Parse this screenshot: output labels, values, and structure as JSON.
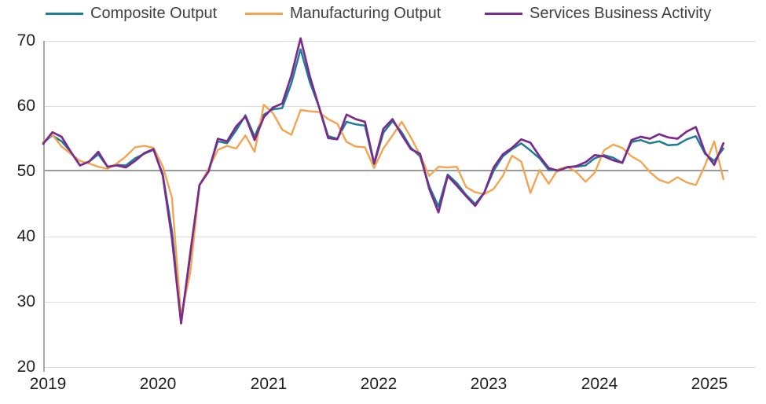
{
  "chart_data": {
    "type": "line",
    "title": "",
    "frequency": "monthly",
    "x_start": "2019-01",
    "x_end": "2025-03",
    "x_tick_labels": [
      "2019",
      "2020",
      "2021",
      "2022",
      "2023",
      "2024",
      "2025"
    ],
    "y_ticks": [
      20,
      30,
      40,
      50,
      60,
      70
    ],
    "ylim": [
      20,
      70
    ],
    "reference_line": 50,
    "grid": true,
    "legend_position": "top",
    "colors": {
      "composite": "#1b7d96",
      "manufacturing": "#f4a44e",
      "services": "#7a2b8e",
      "gridline": "#dcdcdc",
      "reference_line": "#9a9a9a",
      "axis": "#a9a9a9",
      "tick_text": "#1f1f1f"
    },
    "series": [
      {
        "name": "Composite Output",
        "color": "#1b7d96",
        "values": [
          54.4,
          55.5,
          54.6,
          53.0,
          50.9,
          51.5,
          52.6,
          50.7,
          51.0,
          50.9,
          52.0,
          52.7,
          53.3,
          49.6,
          40.9,
          27.0,
          37.0,
          47.9,
          50.3,
          54.6,
          54.3,
          56.3,
          58.6,
          55.3,
          58.7,
          59.5,
          59.7,
          63.5,
          68.7,
          63.7,
          59.9,
          55.4,
          55.0,
          57.6,
          57.2,
          57.0,
          51.1,
          55.9,
          57.7,
          56.0,
          53.6,
          52.3,
          47.7,
          44.6,
          49.5,
          48.2,
          46.4,
          45.0,
          46.8,
          50.1,
          52.3,
          53.4,
          54.3,
          53.2,
          52.0,
          50.2,
          50.2,
          50.7,
          50.7,
          50.9,
          52.0,
          52.5,
          52.1,
          51.3,
          54.5,
          54.8,
          54.3,
          54.6,
          54.0,
          54.1,
          54.9,
          55.4,
          52.7,
          51.6,
          53.5
        ]
      },
      {
        "name": "Manufacturing Output",
        "color": "#f4a44e",
        "values": [
          54.5,
          55.6,
          53.8,
          52.7,
          51.6,
          51.2,
          50.7,
          50.4,
          51.2,
          52.3,
          53.7,
          53.9,
          53.6,
          50.8,
          46.0,
          27.8,
          34.5,
          47.8,
          50.4,
          53.3,
          53.9,
          53.5,
          55.5,
          53.0,
          60.2,
          58.9,
          56.4,
          55.6,
          59.4,
          59.2,
          59.1,
          58.0,
          57.3,
          54.5,
          53.8,
          53.7,
          50.5,
          53.5,
          55.5,
          57.6,
          55.2,
          52.5,
          49.3,
          50.7,
          50.6,
          50.7,
          47.6,
          46.8,
          46.5,
          47.3,
          49.3,
          52.4,
          51.5,
          46.7,
          50.2,
          48.1,
          50.3,
          50.7,
          49.9,
          48.4,
          49.8,
          53.2,
          54.1,
          53.6,
          52.3,
          51.5,
          49.9,
          48.7,
          48.2,
          49.1,
          48.3,
          47.9,
          50.9,
          54.6,
          48.8
        ]
      },
      {
        "name": "Services Business Activity",
        "color": "#7a2b8e",
        "values": [
          54.2,
          56.0,
          55.3,
          53.0,
          50.9,
          51.5,
          53.0,
          50.7,
          50.9,
          50.6,
          51.6,
          52.8,
          53.4,
          49.4,
          39.8,
          26.7,
          37.5,
          47.9,
          50.0,
          55.0,
          54.6,
          56.9,
          58.4,
          54.8,
          58.3,
          59.8,
          60.4,
          64.7,
          70.4,
          64.6,
          59.9,
          55.1,
          54.9,
          58.7,
          58.0,
          57.6,
          51.2,
          56.5,
          58.0,
          55.6,
          53.4,
          52.7,
          47.3,
          43.7,
          49.3,
          47.8,
          46.2,
          44.7,
          46.8,
          50.6,
          52.6,
          53.6,
          54.9,
          54.4,
          52.3,
          50.5,
          50.1,
          50.6,
          50.8,
          51.4,
          52.5,
          52.3,
          51.7,
          51.3,
          54.8,
          55.3,
          55.0,
          55.7,
          55.2,
          55.0,
          56.1,
          56.8,
          52.9,
          51.0,
          54.3
        ]
      }
    ]
  }
}
